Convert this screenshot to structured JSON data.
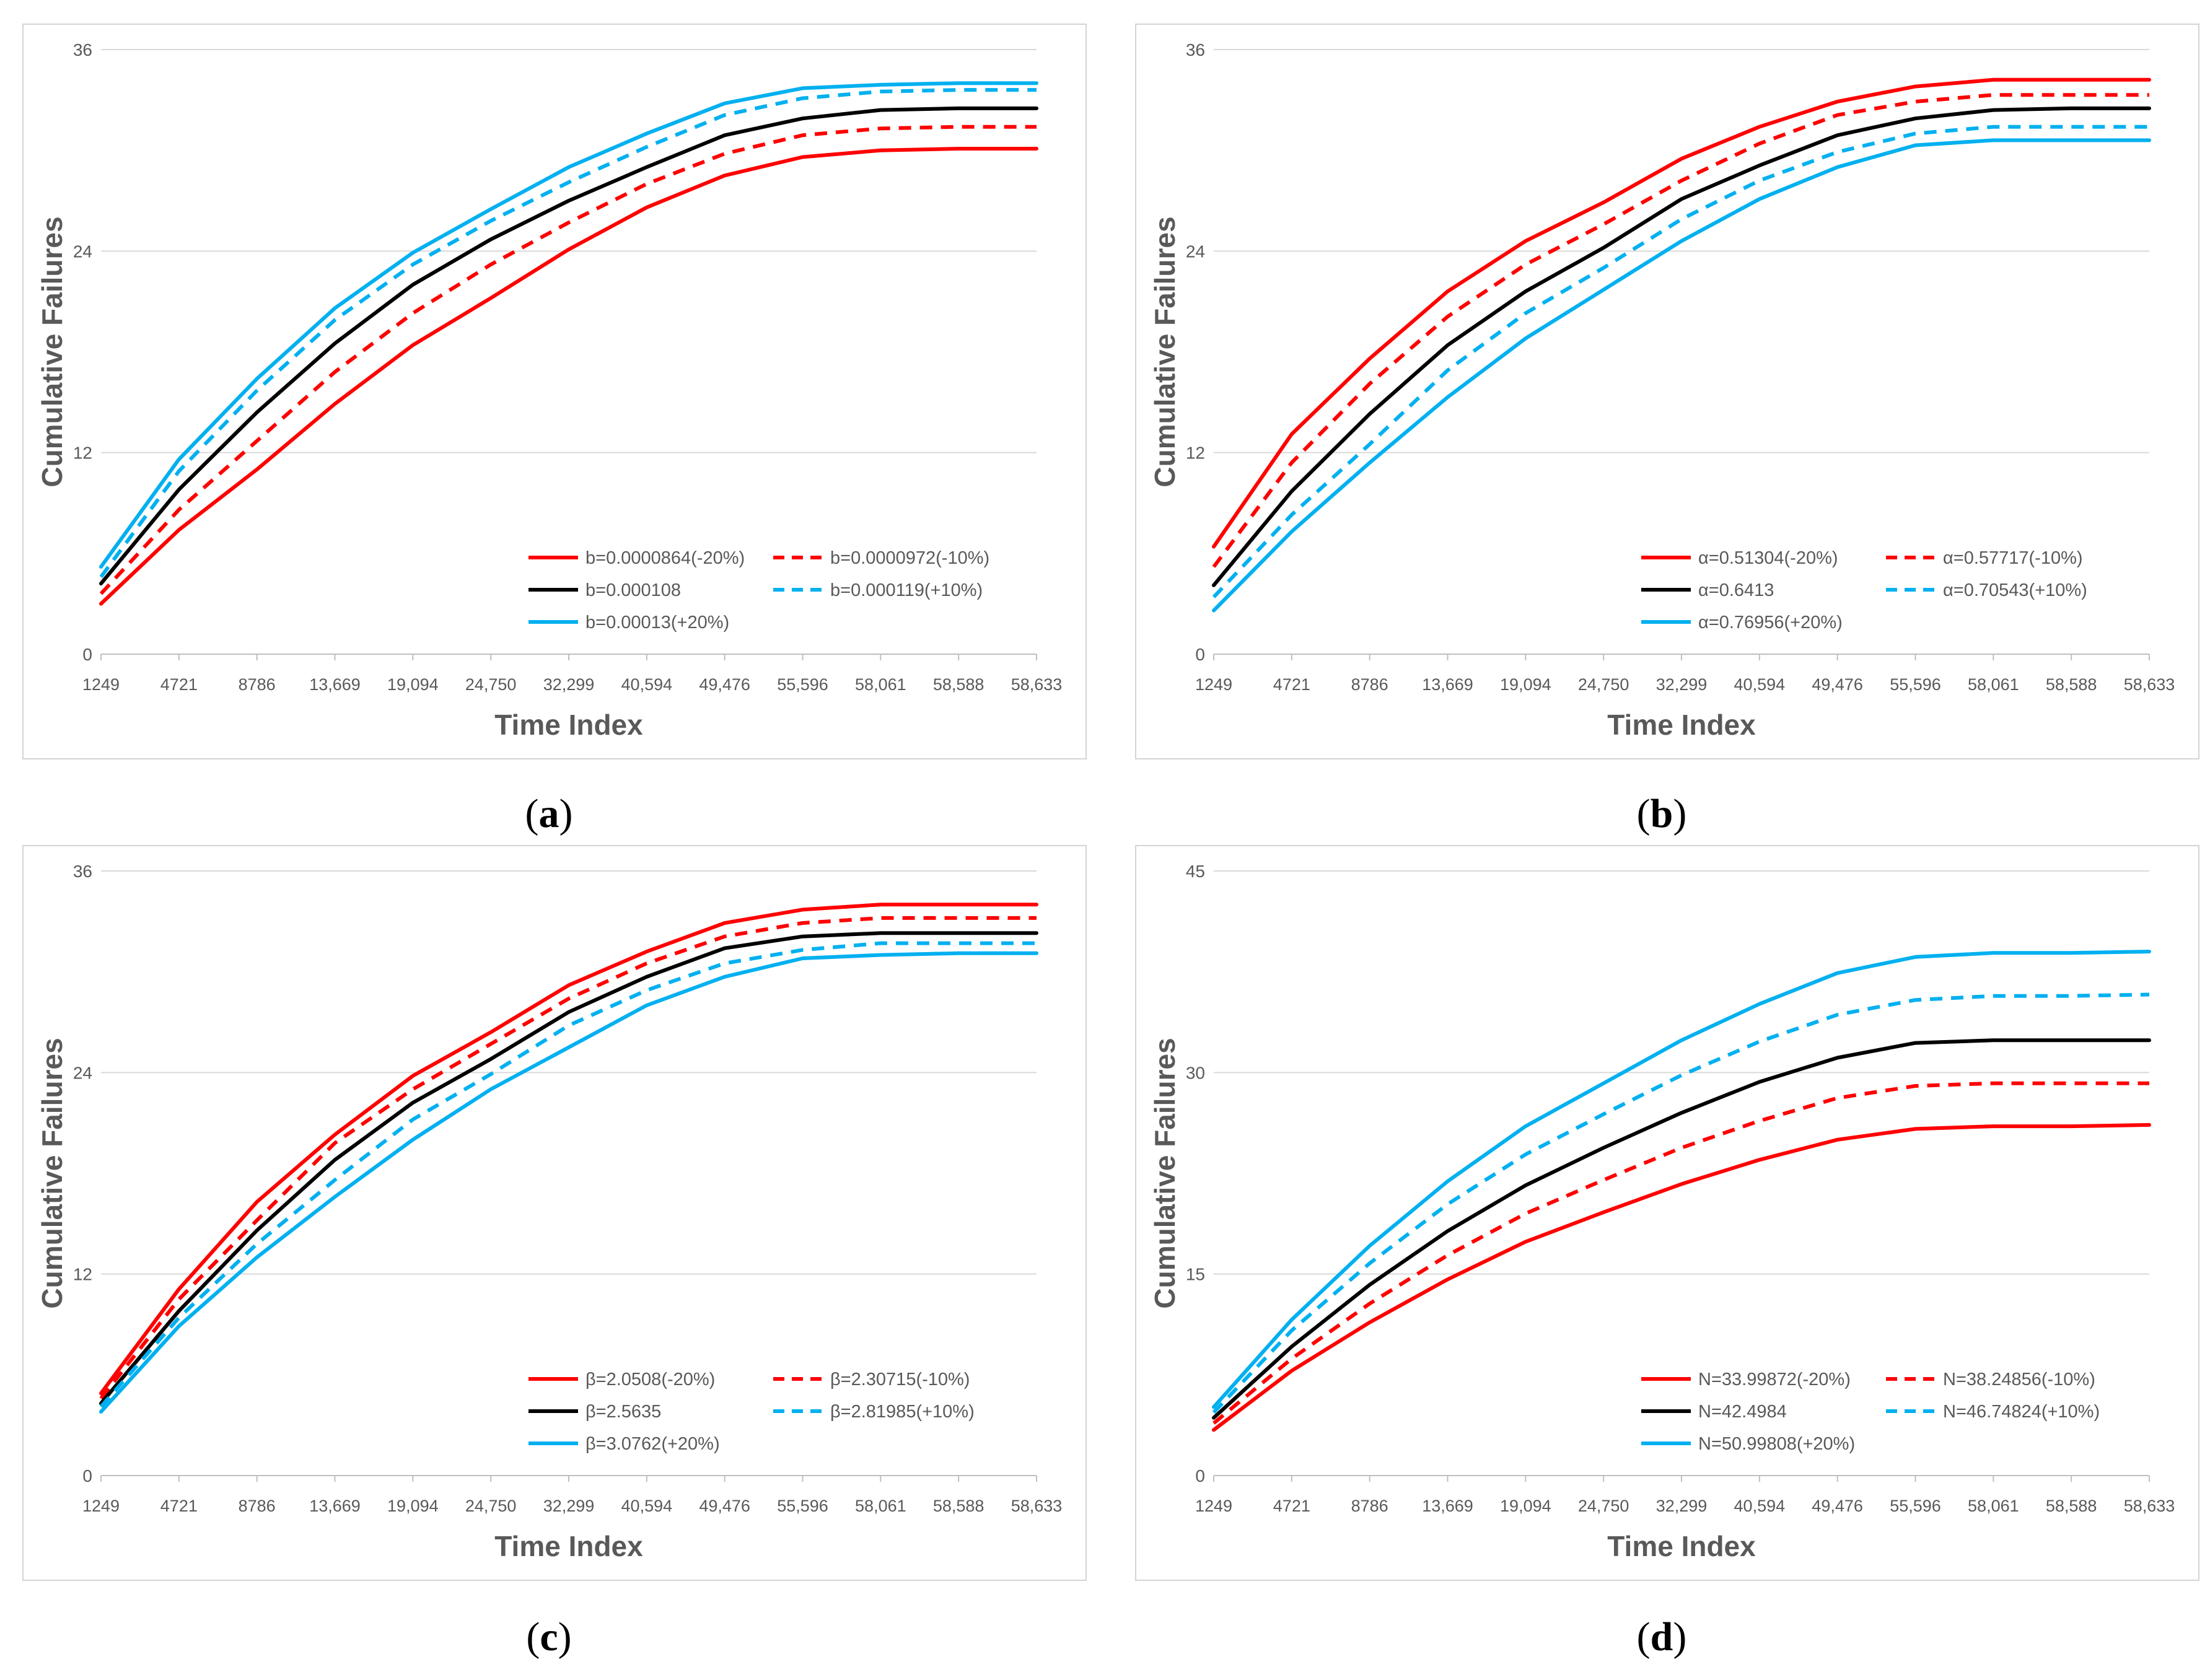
{
  "chart_data": [
    {
      "id": "a",
      "type": "line",
      "caption_letter": "a",
      "xlabel": "Time Index",
      "ylabel": "Cumulative Failures",
      "categories": [
        "1249",
        "4721",
        "8786",
        "13,669",
        "19,094",
        "24,750",
        "32,299",
        "40,594",
        "49,476",
        "55,596",
        "58,061",
        "58,588",
        "58,633"
      ],
      "ylim": [
        0,
        36
      ],
      "yticks": [
        "0",
        "12",
        "24",
        "36"
      ],
      "yticks_values": [
        0,
        12,
        24,
        36
      ],
      "series": [
        {
          "name": "b=0.0000864(-20%)",
          "color": "#ff0000",
          "dash": false,
          "values": [
            3.0,
            7.4,
            11.0,
            14.9,
            18.4,
            21.2,
            24.1,
            26.6,
            28.5,
            29.6,
            30.0,
            30.1,
            30.1
          ]
        },
        {
          "name": "b=0.0000972(-10%)",
          "color": "#ff0000",
          "dash": true,
          "values": [
            3.6,
            8.6,
            12.7,
            16.8,
            20.3,
            23.2,
            25.7,
            28.0,
            29.8,
            30.9,
            31.3,
            31.4,
            31.4
          ]
        },
        {
          "name": "b=0.000108",
          "color": "#000000",
          "dash": false,
          "values": [
            4.2,
            9.8,
            14.4,
            18.5,
            22.0,
            24.7,
            27.0,
            29.0,
            30.9,
            31.9,
            32.4,
            32.5,
            32.5
          ]
        },
        {
          "name": "b=0.000119(+10%)",
          "color": "#00b0f0",
          "dash": true,
          "values": [
            4.6,
            10.9,
            15.7,
            19.9,
            23.2,
            25.8,
            28.1,
            30.2,
            32.1,
            33.1,
            33.5,
            33.6,
            33.6
          ]
        },
        {
          "name": "b=0.00013(+20%)",
          "color": "#00b0f0",
          "dash": false,
          "values": [
            5.2,
            11.6,
            16.4,
            20.6,
            23.9,
            26.5,
            29.0,
            31.0,
            32.8,
            33.7,
            33.9,
            34.0,
            34.0
          ]
        }
      ]
    },
    {
      "id": "b",
      "type": "line",
      "caption_letter": "b",
      "xlabel": "Time Index",
      "ylabel": "Cumulative Failures",
      "categories": [
        "1249",
        "4721",
        "8786",
        "13,669",
        "19,094",
        "24,750",
        "32,299",
        "40,594",
        "49,476",
        "55,596",
        "58,061",
        "58,588",
        "58,633"
      ],
      "ylim": [
        0,
        36
      ],
      "yticks": [
        "0",
        "12",
        "24",
        "36"
      ],
      "yticks_values": [
        0,
        12,
        24,
        36
      ],
      "series": [
        {
          "name": "α=0.51304(-20%)",
          "color": "#ff0000",
          "dash": false,
          "values": [
            6.4,
            13.1,
            17.6,
            21.6,
            24.6,
            26.9,
            29.5,
            31.4,
            32.9,
            33.8,
            34.2,
            34.2,
            34.2
          ]
        },
        {
          "name": "α=0.57717(-10%)",
          "color": "#ff0000",
          "dash": true,
          "values": [
            5.2,
            11.4,
            16.1,
            20.1,
            23.2,
            25.6,
            28.2,
            30.4,
            32.1,
            32.9,
            33.3,
            33.3,
            33.3
          ]
        },
        {
          "name": "α=0.6413",
          "color": "#000000",
          "dash": false,
          "values": [
            4.1,
            9.7,
            14.3,
            18.4,
            21.6,
            24.2,
            27.1,
            29.1,
            30.9,
            31.9,
            32.4,
            32.5,
            32.5
          ]
        },
        {
          "name": "α=0.70543(+10%)",
          "color": "#00b0f0",
          "dash": true,
          "values": [
            3.4,
            8.3,
            12.5,
            16.9,
            20.3,
            23.0,
            25.9,
            28.2,
            29.9,
            31.0,
            31.4,
            31.4,
            31.4
          ]
        },
        {
          "name": "α=0.76956(+20%)",
          "color": "#00b0f0",
          "dash": false,
          "values": [
            2.6,
            7.3,
            11.4,
            15.3,
            18.8,
            21.7,
            24.6,
            27.1,
            29.0,
            30.3,
            30.6,
            30.6,
            30.6
          ]
        }
      ]
    },
    {
      "id": "c",
      "type": "line",
      "caption_letter": "c",
      "xlabel": "Time Index",
      "ylabel": "Cumulative Failures",
      "categories": [
        "1249",
        "4721",
        "8786",
        "13,669",
        "19,094",
        "24,750",
        "32,299",
        "40,594",
        "49,476",
        "55,596",
        "58,061",
        "58,588",
        "58,633"
      ],
      "ylim": [
        0,
        36
      ],
      "yticks": [
        "0",
        "12",
        "24",
        "36"
      ],
      "yticks_values": [
        0,
        12,
        24,
        36
      ],
      "series": [
        {
          "name": "β=2.0508(-20%)",
          "color": "#ff0000",
          "dash": false,
          "values": [
            4.9,
            11.1,
            16.3,
            20.3,
            23.8,
            26.4,
            29.2,
            31.2,
            32.9,
            33.7,
            34.0,
            34.0,
            34.0
          ]
        },
        {
          "name": "β=2.30715(-10%)",
          "color": "#ff0000",
          "dash": true,
          "values": [
            4.6,
            10.5,
            15.2,
            19.8,
            23.0,
            25.7,
            28.4,
            30.5,
            32.1,
            32.9,
            33.2,
            33.2,
            33.2
          ]
        },
        {
          "name": "β=2.5635",
          "color": "#000000",
          "dash": false,
          "values": [
            4.3,
            9.8,
            14.6,
            18.8,
            22.2,
            24.8,
            27.6,
            29.7,
            31.4,
            32.1,
            32.3,
            32.3,
            32.3
          ]
        },
        {
          "name": "β=2.81985(+10%)",
          "color": "#00b0f0",
          "dash": true,
          "values": [
            4.1,
            9.4,
            13.8,
            17.6,
            21.2,
            23.9,
            26.8,
            28.9,
            30.5,
            31.3,
            31.7,
            31.7,
            31.7
          ]
        },
        {
          "name": "β=3.0762(+20%)",
          "color": "#00b0f0",
          "dash": false,
          "values": [
            3.8,
            8.9,
            13.0,
            16.6,
            20.0,
            23.0,
            25.5,
            28.0,
            29.7,
            30.8,
            31.0,
            31.1,
            31.1
          ]
        }
      ]
    },
    {
      "id": "d",
      "type": "line",
      "caption_letter": "d",
      "xlabel": "Time Index",
      "ylabel": "Cumulative Failures",
      "categories": [
        "1249",
        "4721",
        "8786",
        "13,669",
        "19,094",
        "24,750",
        "32,299",
        "40,594",
        "49,476",
        "55,596",
        "58,061",
        "58,588",
        "58,633"
      ],
      "ylim": [
        0,
        45
      ],
      "yticks": [
        "0",
        "15",
        "30",
        "45"
      ],
      "yticks_values": [
        0,
        15,
        30,
        45
      ],
      "series": [
        {
          "name": "N=33.99872(-20%)",
          "color": "#ff0000",
          "dash": false,
          "values": [
            3.4,
            7.8,
            11.4,
            14.6,
            17.4,
            19.6,
            21.7,
            23.5,
            25.0,
            25.8,
            26.0,
            26.0,
            26.1
          ]
        },
        {
          "name": "N=38.24856(-10%)",
          "color": "#ff0000",
          "dash": true,
          "values": [
            3.9,
            8.7,
            12.8,
            16.4,
            19.5,
            22.0,
            24.4,
            26.4,
            28.1,
            29.0,
            29.2,
            29.2,
            29.2
          ]
        },
        {
          "name": "N=42.4984",
          "color": "#000000",
          "dash": false,
          "values": [
            4.3,
            9.6,
            14.2,
            18.2,
            21.6,
            24.4,
            27.0,
            29.3,
            31.1,
            32.2,
            32.4,
            32.4,
            32.4
          ]
        },
        {
          "name": "N=46.74824(+10%)",
          "color": "#00b0f0",
          "dash": true,
          "values": [
            4.7,
            10.8,
            15.8,
            20.2,
            23.9,
            26.9,
            29.8,
            32.3,
            34.3,
            35.4,
            35.7,
            35.7,
            35.8
          ]
        },
        {
          "name": "N=50.99808(+20%)",
          "color": "#00b0f0",
          "dash": false,
          "values": [
            5.1,
            11.6,
            17.1,
            21.9,
            26.0,
            29.2,
            32.4,
            35.1,
            37.4,
            38.6,
            38.9,
            38.9,
            39.0
          ]
        }
      ]
    }
  ]
}
